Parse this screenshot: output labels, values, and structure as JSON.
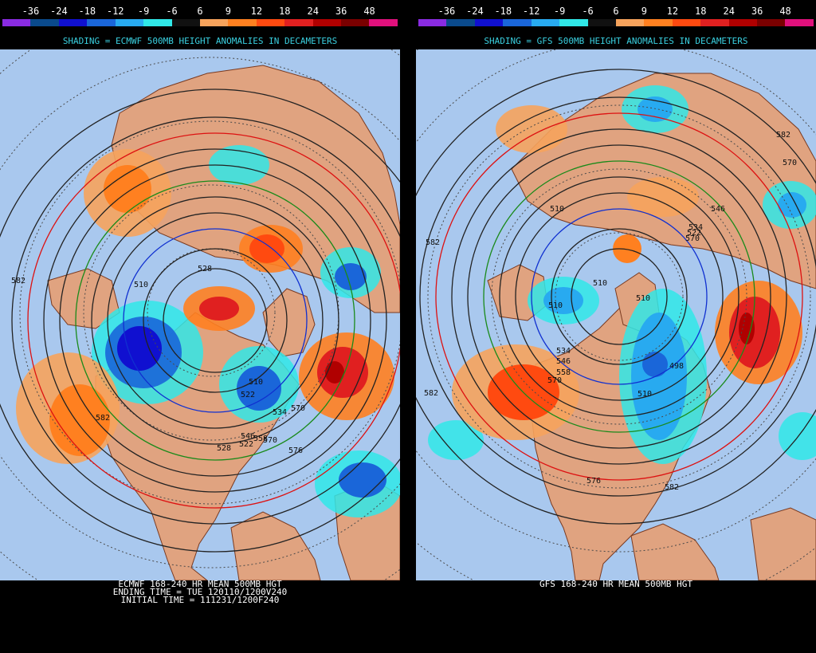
{
  "scale": {
    "labels": [
      "-36",
      "-24",
      "-18",
      "-12",
      "-9",
      "-6",
      "6",
      "9",
      "12",
      "18",
      "24",
      "36",
      "48"
    ],
    "colors": [
      "#8a2be2",
      "#0a4a8c",
      "#1010d0",
      "#1a66d9",
      "#28aaf0",
      "#30e8e8",
      "#000000",
      "#f6a35c",
      "#ff8020",
      "#ff4a10",
      "#e02020",
      "#b00000",
      "#7a0000",
      "#e0107c"
    ]
  },
  "colors": {
    "ocean": "#a9c8ee",
    "land": "#e0a380",
    "coast": "#7a3a20",
    "grid": "#4a4a4a",
    "contour": "#222222",
    "contour_red": "#dd1111",
    "contour_green": "#1a8a1a",
    "contour_blue": "#1030d0",
    "title_text": "#3ad0e0"
  },
  "left": {
    "shading_title": "SHADING = ECMWF 500MB HEIGHT ANOMALIES IN DECAMETERS",
    "caption": [
      "ECMWF 168-240 HR MEAN 500MB HGT",
      "ENDING TIME = TUE 120110/1200V240",
      "INITIAL TIME = 111231/1200F240"
    ],
    "contour_labels": [
      "510",
      "522",
      "528",
      "582",
      "582",
      "570",
      "576",
      "528",
      "570",
      "534",
      "546",
      "558",
      "522",
      "510"
    ]
  },
  "right": {
    "shading_title": "SHADING = GFS 500MB HEIGHT ANOMALIES IN DECAMETERS",
    "caption": [
      "GFS 168-240 HR MEAN 500MB HGT"
    ],
    "contour_labels": [
      "582",
      "510",
      "510",
      "510",
      "510",
      "534",
      "546",
      "558",
      "570",
      "582",
      "546",
      "534",
      "522",
      "498",
      "510",
      "570",
      "576",
      "582",
      "582",
      "570"
    ]
  }
}
